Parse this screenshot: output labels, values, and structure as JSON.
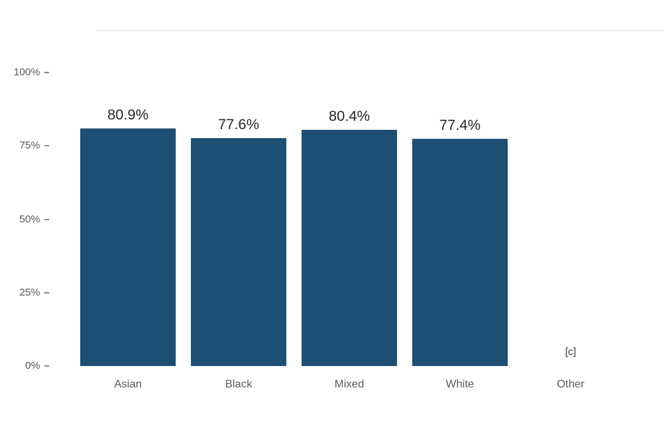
{
  "chart_data": {
    "type": "bar",
    "categories": [
      "Asian",
      "Black",
      "Mixed",
      "White",
      "Other"
    ],
    "values": [
      80.9,
      77.6,
      80.4,
      77.4,
      null
    ],
    "value_labels": [
      "80.9%",
      "77.6%",
      "80.4%",
      "77.4%",
      "[c]"
    ],
    "title": "",
    "xlabel": "",
    "ylabel": "",
    "ylim": [
      0,
      100
    ],
    "yticks": [
      0,
      25,
      50,
      75,
      100
    ],
    "ytick_labels": [
      "0%",
      "25%",
      "50%",
      "75%",
      "100%"
    ],
    "grid": false,
    "legend": "none",
    "bar_color": "#1d4f74",
    "suppressed_annotation": {
      "category": "Other",
      "text": "[c]"
    }
  },
  "colors": {
    "bar": "#1d4f74",
    "axis_text": "#5a5a5a",
    "value_text": "#262626",
    "divider": "#e6e6e6",
    "background": "#ffffff"
  }
}
